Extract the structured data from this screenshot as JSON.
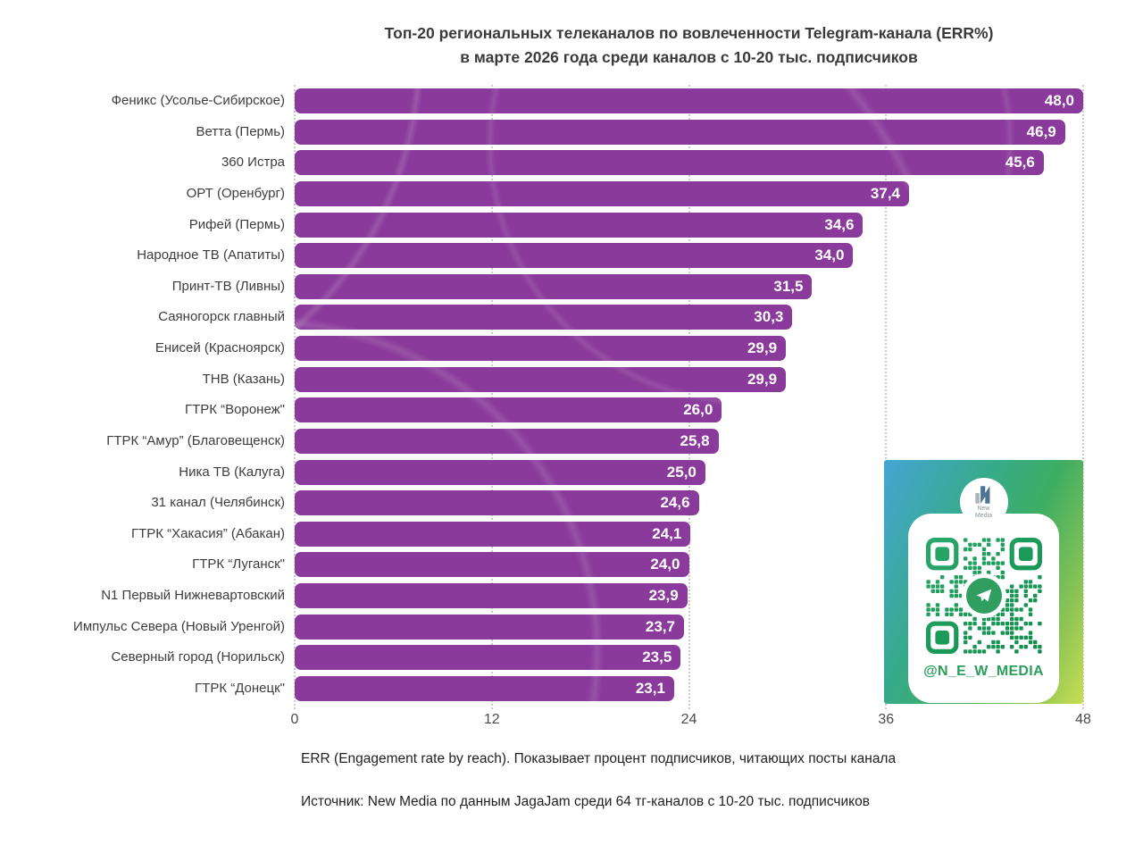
{
  "title": {
    "line1": "Топ-20 региональных телеканалов по вовлеченности Telegram-канала (ERR%)",
    "line2": "в марте 2026 года среди каналов с 10-20 тыс. подписчиков"
  },
  "chart_data": {
    "type": "bar",
    "orientation": "horizontal",
    "title": "Топ-20 региональных телеканалов по вовлеченности Telegram-канала (ERR%) в марте 2026 года среди каналов с 10-20 тыс. подписчиков",
    "categories": [
      "Феникс (Усолье-Сибирское)",
      "Ветта (Пермь)",
      "360 Истра",
      "ОРТ (Оренбург)",
      "Рифей (Пермь)",
      "Народное ТВ (Апатиты)",
      "Принт-ТВ (Ливны)",
      "Саяногорск главный",
      "Енисей (Красноярск)",
      "ТНВ (Казань)",
      "ГТРК “Воронеж\"",
      "ГТРК “Амур” (Благовещенск)",
      "Ника ТВ (Калуга)",
      "31 канал (Челябинск)",
      "ГТРК “Хакасия” (Абакан)",
      "ГТРК “Луганск\"",
      "N1 Первый Нижневартовский",
      "Импульс Севера (Новый Уренгой)",
      "Северный город (Норильск)",
      "ГТРК “Донецк\""
    ],
    "values": [
      48.0,
      46.9,
      45.6,
      37.4,
      34.6,
      34.0,
      31.5,
      30.3,
      29.9,
      29.9,
      26.0,
      25.8,
      25.0,
      24.6,
      24.1,
      24.0,
      23.9,
      23.7,
      23.5,
      23.1
    ],
    "value_labels": [
      "48,0",
      "46,9",
      "45,6",
      "37,4",
      "34,6",
      "34,0",
      "31,5",
      "30,3",
      "29,9",
      "29,9",
      "26,0",
      "25,8",
      "25,0",
      "24,6",
      "24,1",
      "24,0",
      "23,9",
      "23,7",
      "23,5",
      "23,1"
    ],
    "xlabel": "",
    "ylabel": "",
    "xlim": [
      0,
      48
    ],
    "x_ticks": [
      "0",
      "12",
      "24",
      "36",
      "48"
    ],
    "grid": "vertical-dotted",
    "legend": "none",
    "bar_color": "#8a3a9b",
    "value_label_color": "#ffffff"
  },
  "footnotes": {
    "err_note": "ERR (Engagement rate by reach). Показывает процент подписчиков, читающих посты канала",
    "source": "Источник: New Media по данным JagaJam среди 64 тг-каналов с 10-20 тыс. подписчиков"
  },
  "badge": {
    "handle": "@N_E_W_MEDIA",
    "logo_text": "New Media",
    "logo_line1": "New",
    "logo_line2": "Media",
    "qr_green": "#1f8f52",
    "gradient_start": "#45a5d4",
    "gradient_end": "#c9de52"
  }
}
